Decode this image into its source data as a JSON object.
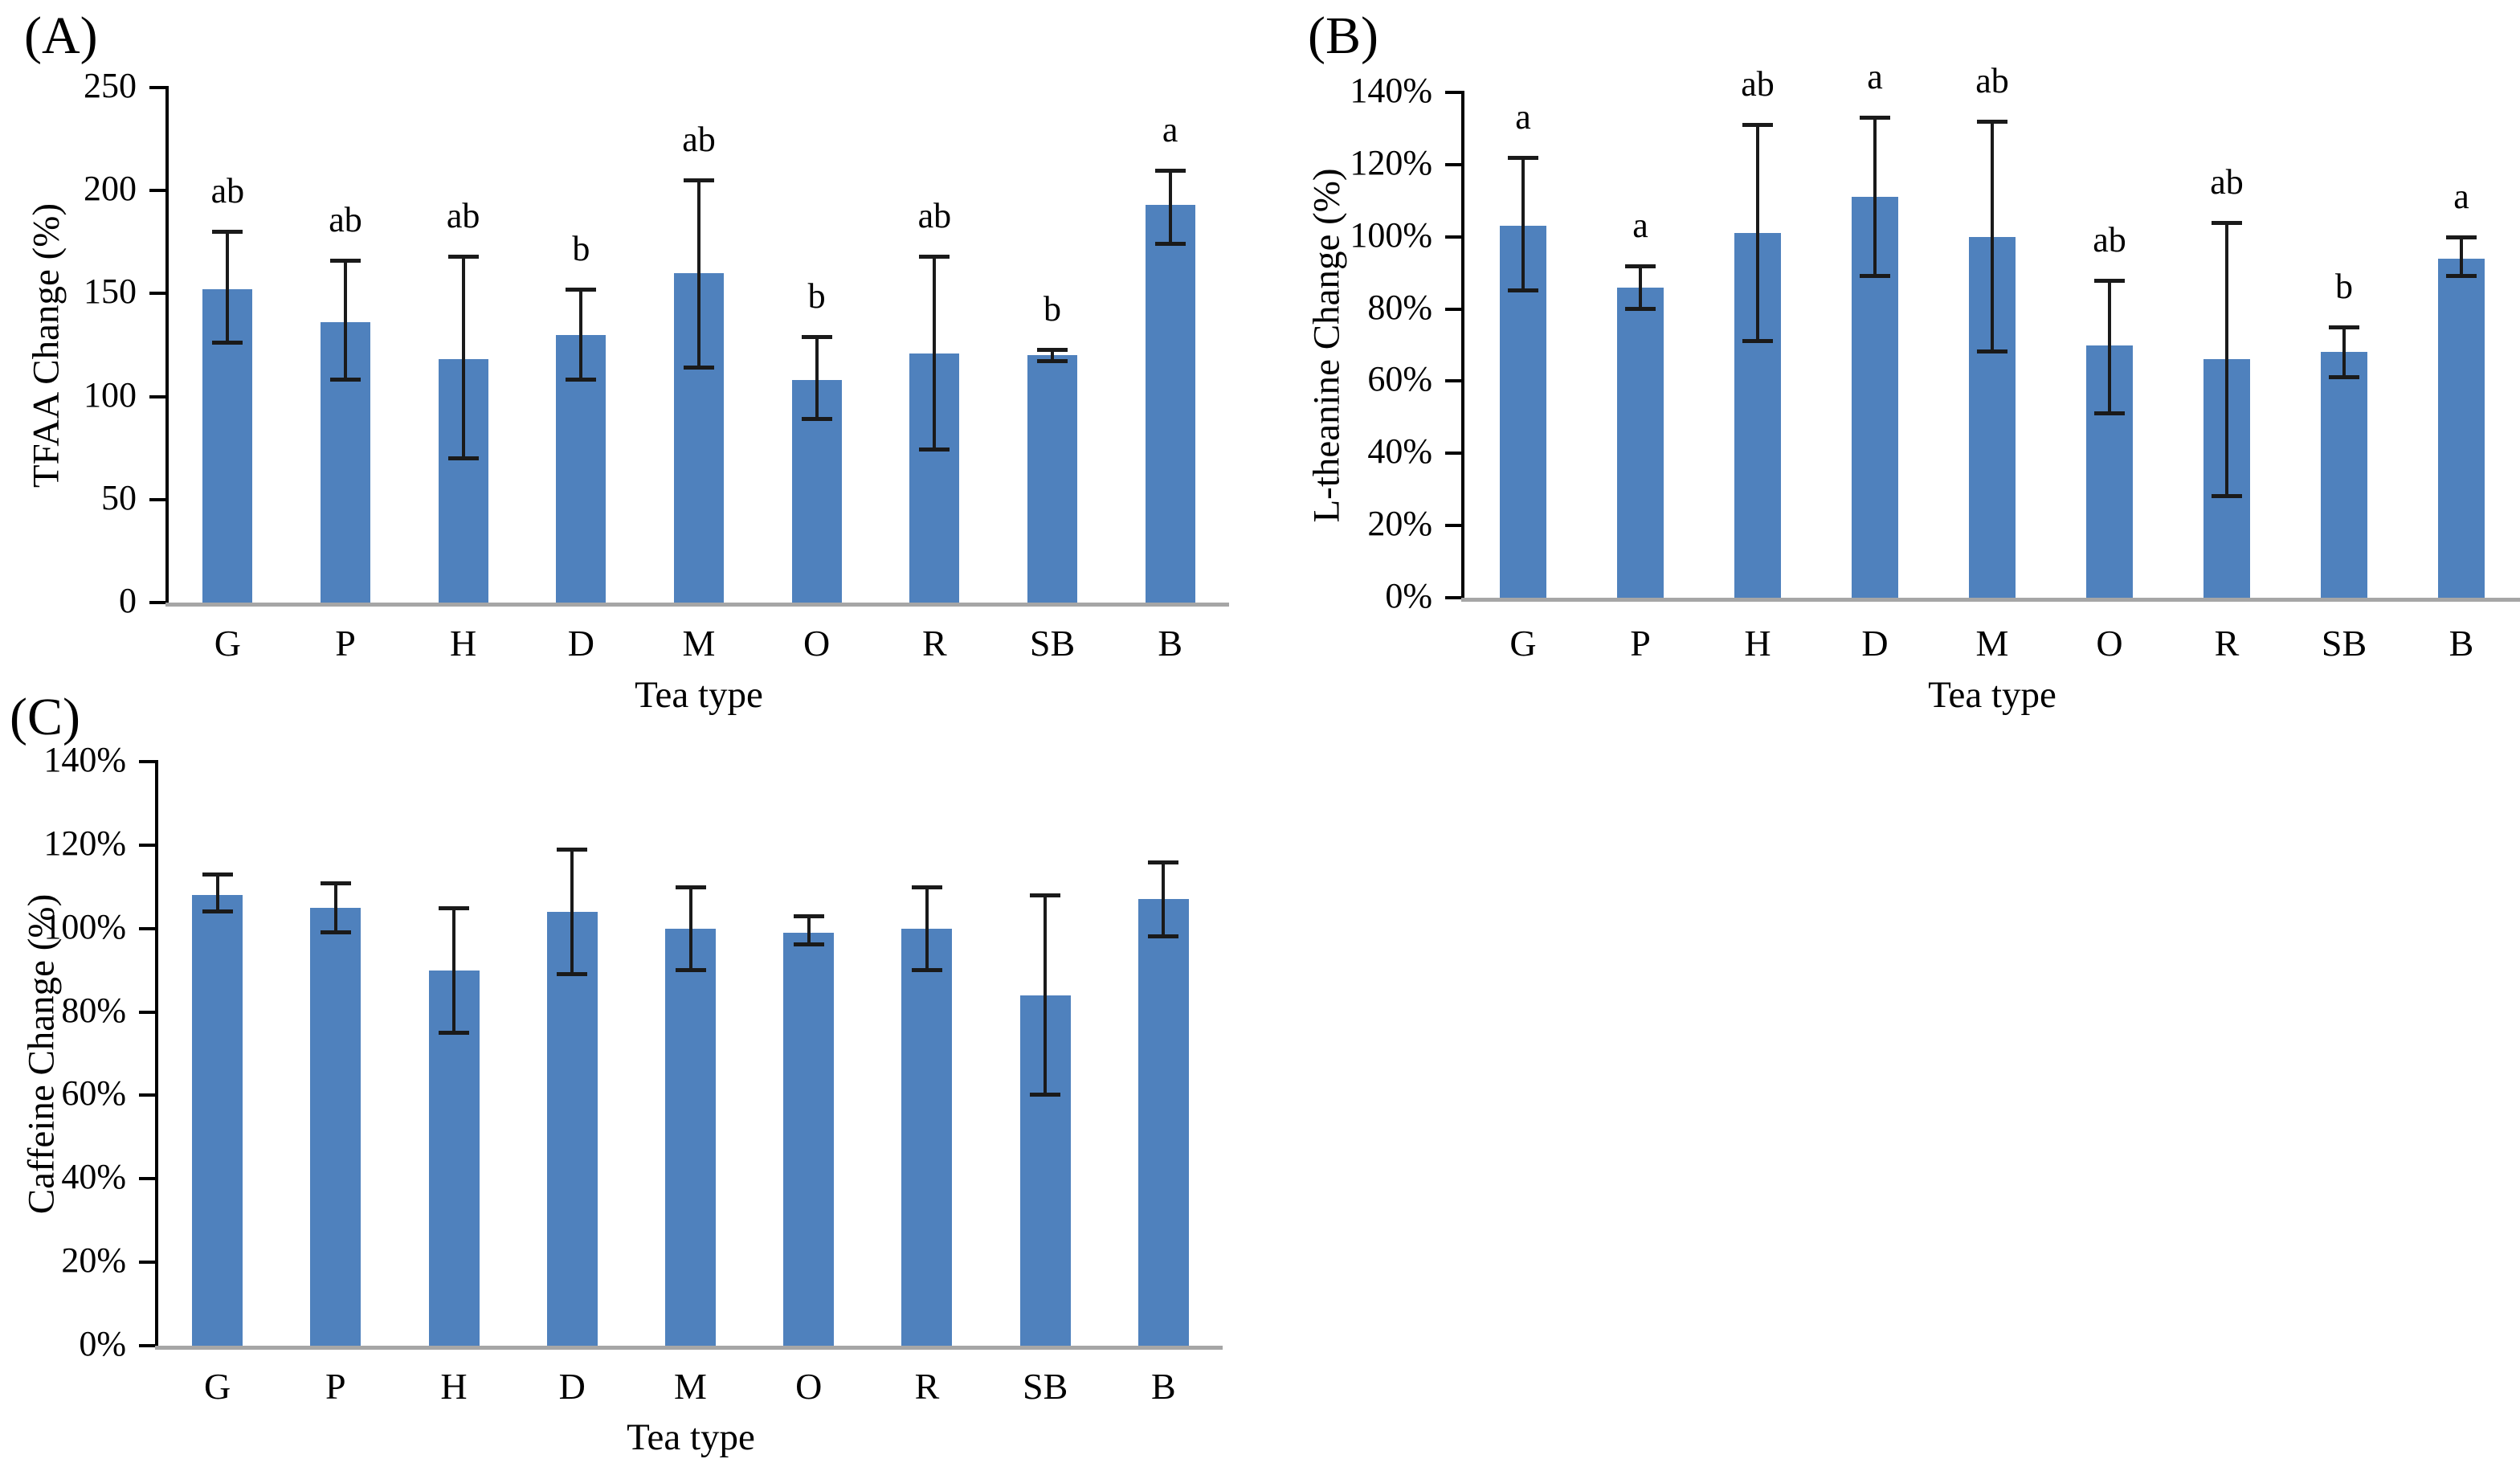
{
  "figure": {
    "background": "#ffffff",
    "bar_color": "#4f81bd",
    "error_bar_color": "#1a1a1a",
    "axis_color": "#000000",
    "baseline_color": "#a6a6a6"
  },
  "chart_data": [
    {
      "id": "A",
      "panel_label": "(A)",
      "type": "bar",
      "title": "",
      "xlabel": "Tea type",
      "ylabel": "TFAA Change (%)",
      "ylim": [
        0,
        250
      ],
      "ytick_step": 50,
      "ytick_labels": [
        "0",
        "50",
        "100",
        "150",
        "200",
        "250"
      ],
      "grid": false,
      "legend_position": "none",
      "categories": [
        "G",
        "P",
        "H",
        "D",
        "M",
        "O",
        "R",
        "SB",
        "B"
      ],
      "values": [
        152,
        136,
        118,
        130,
        160,
        108,
        121,
        120,
        193
      ],
      "error_low": [
        126,
        108,
        70,
        108,
        114,
        89,
        74,
        117,
        174
      ],
      "error_high": [
        180,
        166,
        168,
        152,
        205,
        129,
        168,
        123,
        210
      ],
      "sig_letters": [
        "ab",
        "ab",
        "ab",
        "b",
        "ab",
        "b",
        "ab",
        "b",
        "a"
      ]
    },
    {
      "id": "B",
      "panel_label": "(B)",
      "type": "bar",
      "title": "",
      "xlabel": "Tea type",
      "ylabel": "L-theanine Change (%)",
      "ylim": [
        0,
        140
      ],
      "ytick_step": 20,
      "ytick_labels": [
        "0%",
        "20%",
        "40%",
        "60%",
        "80%",
        "100%",
        "120%",
        "140%"
      ],
      "grid": false,
      "legend_position": "none",
      "categories": [
        "G",
        "P",
        "H",
        "D",
        "M",
        "O",
        "R",
        "SB",
        "B"
      ],
      "values": [
        103,
        86,
        101,
        111,
        100,
        70,
        66,
        68,
        94
      ],
      "error_low": [
        85,
        80,
        71,
        89,
        68,
        51,
        28,
        61,
        89
      ],
      "error_high": [
        122,
        92,
        131,
        133,
        132,
        88,
        104,
        75,
        100
      ],
      "sig_letters": [
        "a",
        "a",
        "ab",
        "a",
        "ab",
        "ab",
        "ab",
        "b",
        "a"
      ]
    },
    {
      "id": "C",
      "panel_label": "(C)",
      "type": "bar",
      "title": "",
      "xlabel": "Tea type",
      "ylabel": "Caffeine Change (%)",
      "ylim": [
        0,
        140
      ],
      "ytick_step": 20,
      "ytick_labels": [
        "0%",
        "20%",
        "40%",
        "60%",
        "80%",
        "100%",
        "120%",
        "140%"
      ],
      "grid": false,
      "legend_position": "none",
      "categories": [
        "G",
        "P",
        "H",
        "D",
        "M",
        "O",
        "R",
        "SB",
        "B"
      ],
      "values": [
        108,
        105,
        90,
        104,
        100,
        99,
        100,
        84,
        107
      ],
      "error_low": [
        104,
        99,
        75,
        89,
        90,
        96,
        90,
        60,
        98
      ],
      "error_high": [
        113,
        111,
        105,
        119,
        110,
        103,
        110,
        108,
        116
      ],
      "sig_letters": [
        "",
        "",
        "",
        "",
        "",
        "",
        "",
        "",
        ""
      ]
    }
  ]
}
